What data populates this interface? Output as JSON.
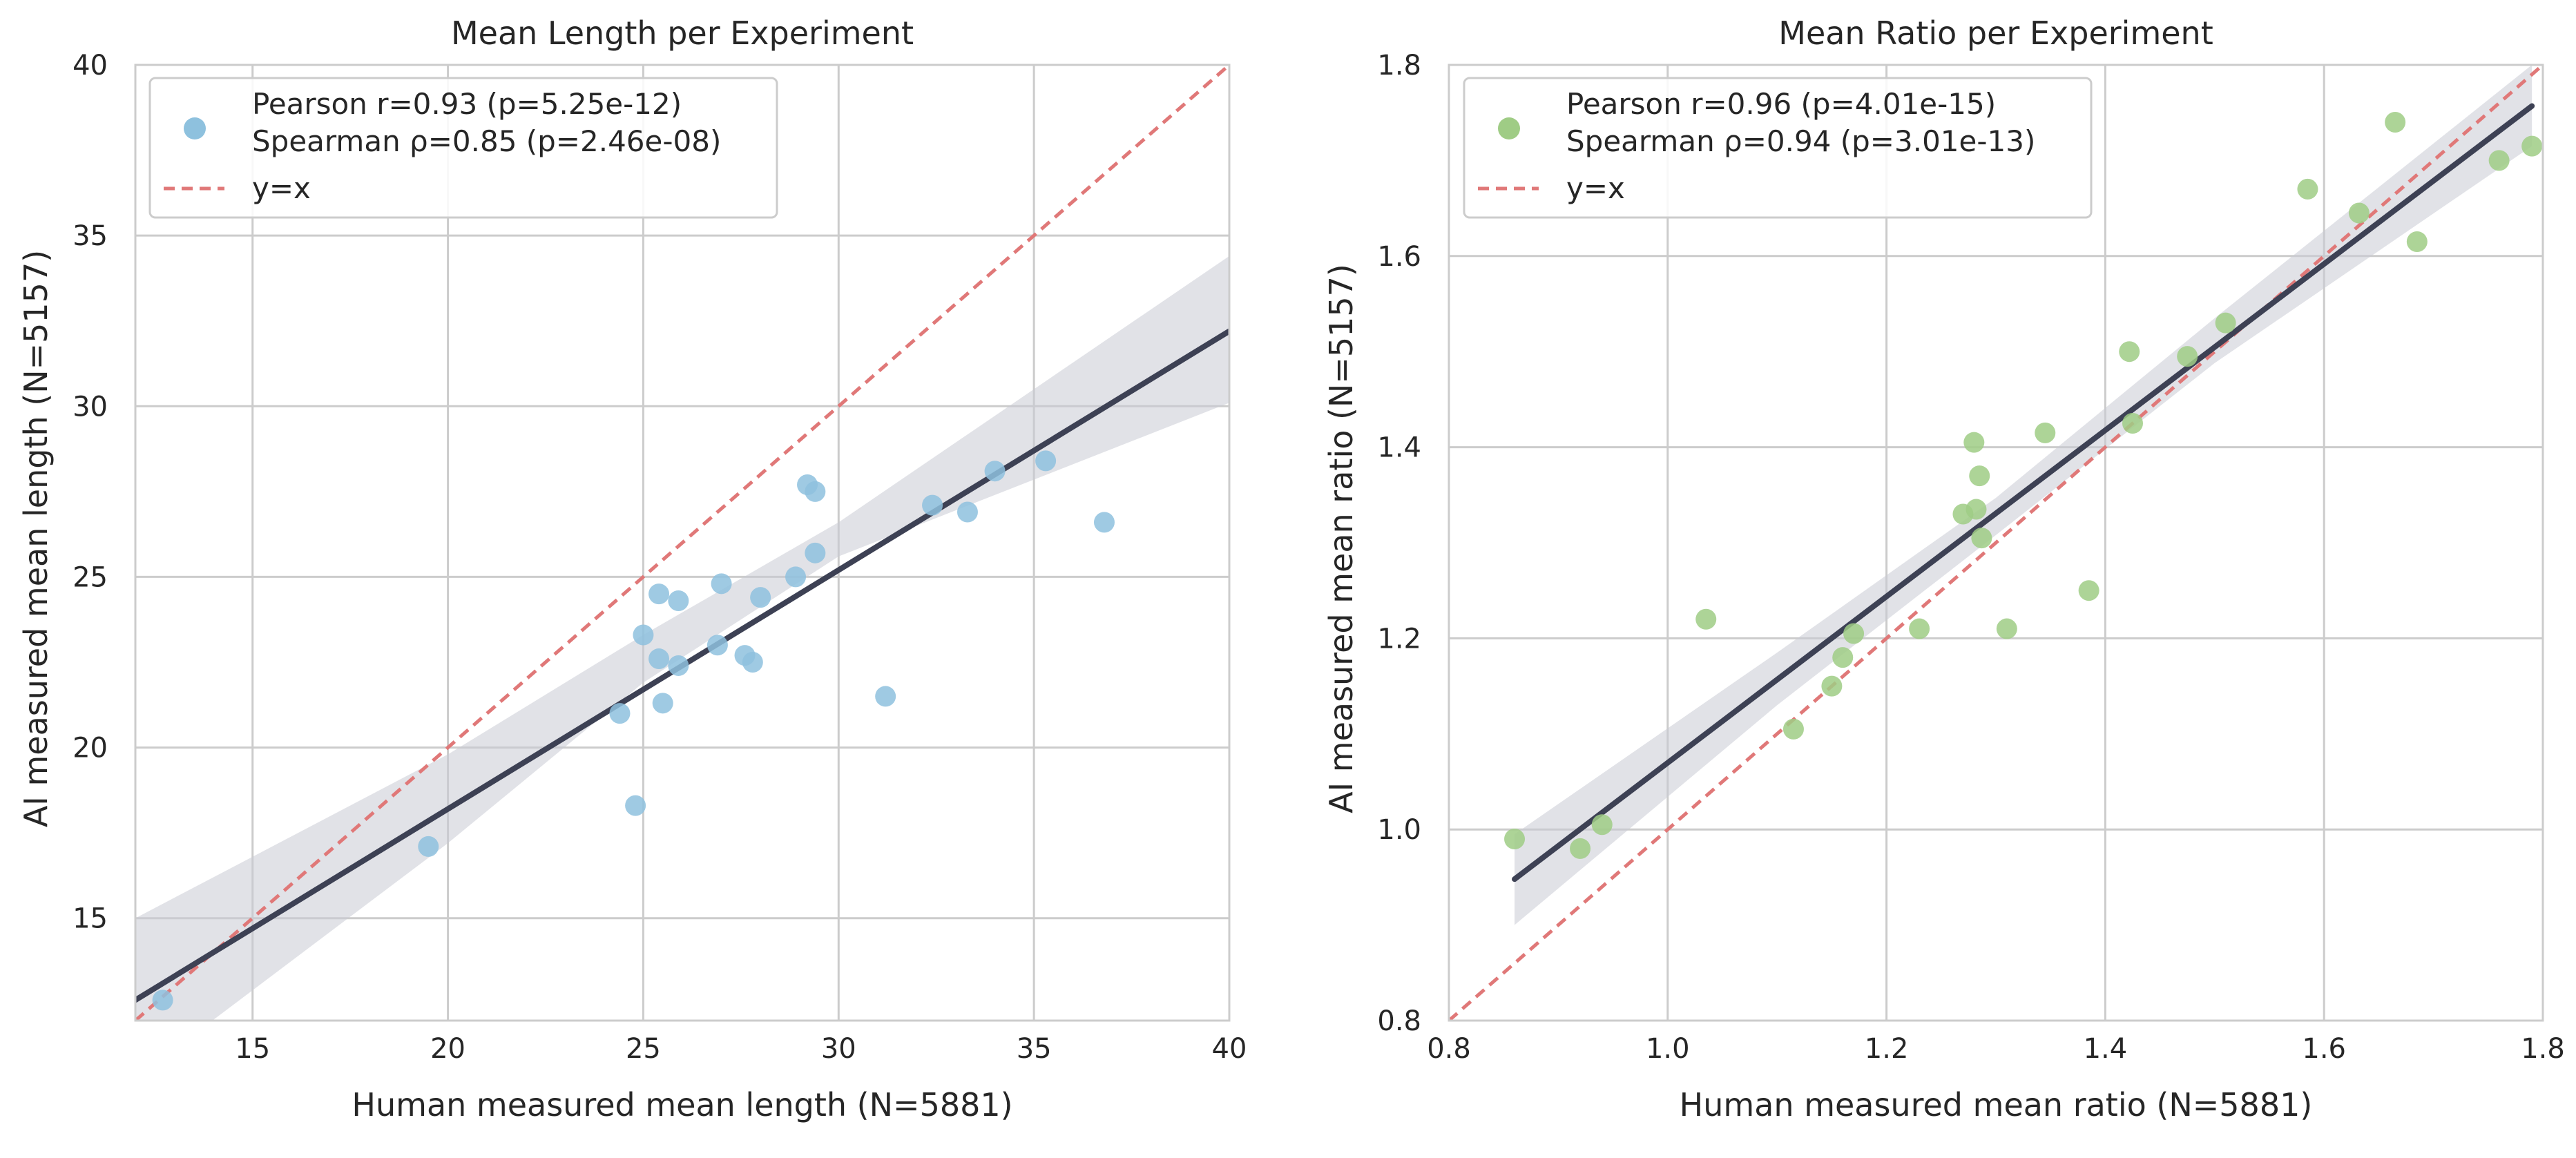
{
  "chart_data": [
    {
      "type": "scatter",
      "title": "Mean Length per Experiment",
      "xlabel": "Human measured mean length (N=5881)",
      "ylabel": "AI measured mean length (N=5157)",
      "xlim": [
        12,
        40
      ],
      "ylim": [
        12,
        40
      ],
      "xticks": [
        15,
        20,
        25,
        30,
        35,
        40
      ],
      "yticks": [
        15,
        20,
        25,
        30,
        35,
        40
      ],
      "grid": true,
      "legend_position": "top-left",
      "legend": {
        "scatter_lines": [
          "Pearson r=0.93 (p=5.25e-12)",
          "Spearman ρ=0.85 (p=2.46e-08)"
        ],
        "identity_label": "y=x"
      },
      "point_color": "#8ec1de",
      "fit_color": "#3d4154",
      "band_color": "#c9cbd3",
      "identity_color": "#e07878",
      "regression": {
        "x": [
          12,
          40
        ],
        "y": [
          12.6,
          32.2
        ]
      },
      "confidence_band": {
        "x": [
          12,
          20,
          25,
          30,
          40
        ],
        "lower": [
          10.3,
          17.2,
          21.9,
          25.6,
          30.1
        ],
        "upper": [
          15.0,
          19.8,
          23.3,
          26.6,
          34.4
        ]
      },
      "points": [
        {
          "x": 12.7,
          "y": 12.6
        },
        {
          "x": 19.5,
          "y": 17.1
        },
        {
          "x": 24.4,
          "y": 21.0
        },
        {
          "x": 24.8,
          "y": 18.3
        },
        {
          "x": 25.0,
          "y": 23.3
        },
        {
          "x": 25.4,
          "y": 24.5
        },
        {
          "x": 25.4,
          "y": 22.6
        },
        {
          "x": 25.5,
          "y": 21.3
        },
        {
          "x": 25.9,
          "y": 24.3
        },
        {
          "x": 25.9,
          "y": 22.4
        },
        {
          "x": 26.9,
          "y": 23.0
        },
        {
          "x": 27.0,
          "y": 24.8
        },
        {
          "x": 27.6,
          "y": 22.7
        },
        {
          "x": 27.8,
          "y": 22.5
        },
        {
          "x": 28.0,
          "y": 24.4
        },
        {
          "x": 28.9,
          "y": 25.0
        },
        {
          "x": 29.2,
          "y": 27.7
        },
        {
          "x": 29.4,
          "y": 27.5
        },
        {
          "x": 29.4,
          "y": 25.7
        },
        {
          "x": 31.2,
          "y": 21.5
        },
        {
          "x": 32.4,
          "y": 27.1
        },
        {
          "x": 33.3,
          "y": 26.9
        },
        {
          "x": 34.0,
          "y": 28.1
        },
        {
          "x": 35.3,
          "y": 28.4
        },
        {
          "x": 36.8,
          "y": 26.6
        }
      ]
    },
    {
      "type": "scatter",
      "title": "Mean Ratio per Experiment",
      "xlabel": "Human measured mean ratio (N=5881)",
      "ylabel": "AI measured mean ratio (N=5157)",
      "xlim": [
        0.8,
        1.8
      ],
      "ylim": [
        0.8,
        1.8
      ],
      "xticks": [
        0.8,
        1.0,
        1.2,
        1.4,
        1.6,
        1.8
      ],
      "yticks": [
        0.8,
        1.0,
        1.2,
        1.4,
        1.6,
        1.8
      ],
      "grid": true,
      "legend_position": "top-left",
      "legend": {
        "scatter_lines": [
          "Pearson r=0.96 (p=4.01e-15)",
          "Spearman ρ=0.94 (p=3.01e-13)"
        ],
        "identity_label": "y=x"
      },
      "point_color": "#9fcc85",
      "fit_color": "#3d4154",
      "band_color": "#c9cbd3",
      "identity_color": "#e07878",
      "regression": {
        "x": [
          0.86,
          1.79
        ],
        "y": [
          0.948,
          1.757
        ]
      },
      "confidence_band": {
        "x": [
          0.86,
          1.1,
          1.3,
          1.5,
          1.79
        ],
        "lower": [
          0.9,
          1.13,
          1.308,
          1.488,
          1.715
        ],
        "upper": [
          0.995,
          1.185,
          1.347,
          1.535,
          1.8
        ]
      },
      "points": [
        {
          "x": 0.86,
          "y": 0.99
        },
        {
          "x": 0.92,
          "y": 0.98
        },
        {
          "x": 0.94,
          "y": 1.005
        },
        {
          "x": 1.035,
          "y": 1.22
        },
        {
          "x": 1.115,
          "y": 1.105
        },
        {
          "x": 1.15,
          "y": 1.15
        },
        {
          "x": 1.16,
          "y": 1.18
        },
        {
          "x": 1.17,
          "y": 1.205
        },
        {
          "x": 1.23,
          "y": 1.21
        },
        {
          "x": 1.27,
          "y": 1.33
        },
        {
          "x": 1.28,
          "y": 1.405
        },
        {
          "x": 1.282,
          "y": 1.335
        },
        {
          "x": 1.285,
          "y": 1.37
        },
        {
          "x": 1.287,
          "y": 1.305
        },
        {
          "x": 1.31,
          "y": 1.21
        },
        {
          "x": 1.345,
          "y": 1.415
        },
        {
          "x": 1.385,
          "y": 1.25
        },
        {
          "x": 1.422,
          "y": 1.5
        },
        {
          "x": 1.425,
          "y": 1.425
        },
        {
          "x": 1.475,
          "y": 1.495
        },
        {
          "x": 1.51,
          "y": 1.53
        },
        {
          "x": 1.585,
          "y": 1.67
        },
        {
          "x": 1.632,
          "y": 1.645
        },
        {
          "x": 1.665,
          "y": 1.74
        },
        {
          "x": 1.685,
          "y": 1.615
        },
        {
          "x": 1.76,
          "y": 1.7
        },
        {
          "x": 1.79,
          "y": 1.715
        }
      ]
    }
  ]
}
